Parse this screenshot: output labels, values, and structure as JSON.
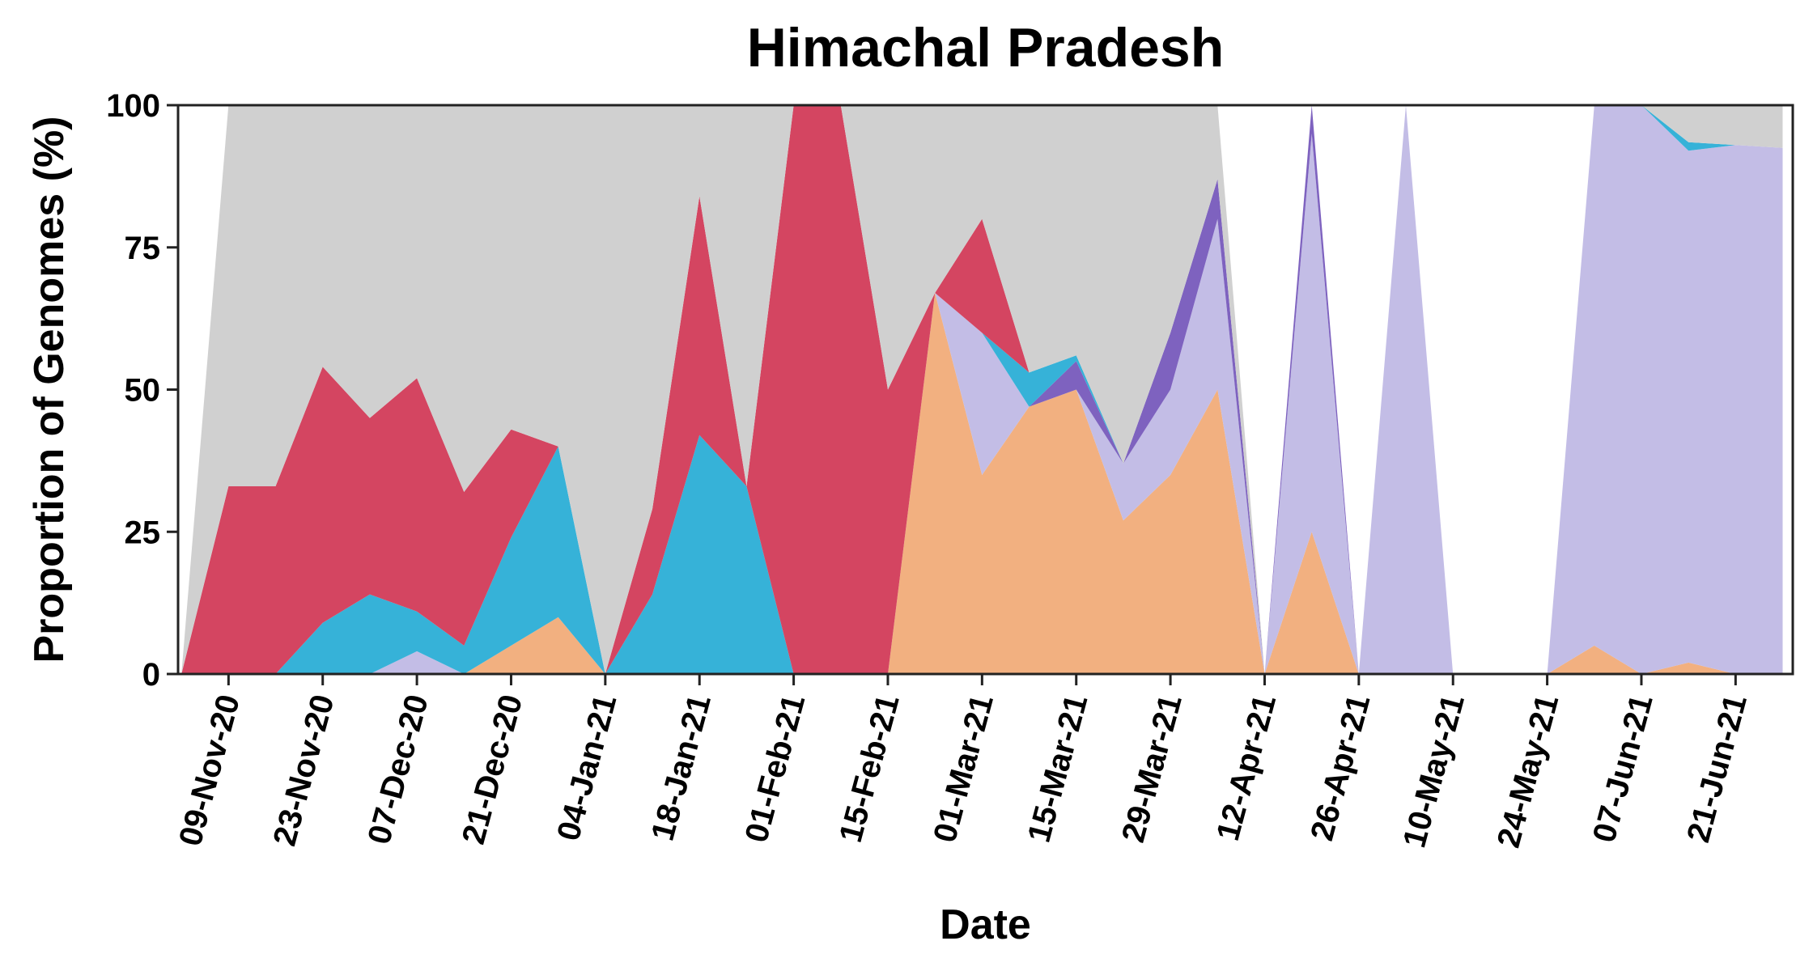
{
  "chart_data": {
    "type": "area",
    "stacked": true,
    "title": "Himachal Pradesh",
    "xlabel": "Date",
    "ylabel": "Proportion of Genomes (%)",
    "ylim": [
      0,
      100
    ],
    "yticks": [
      0,
      25,
      50,
      75,
      100
    ],
    "x_tick_labels": [
      "09-Nov-20",
      "23-Nov-20",
      "07-Dec-20",
      "21-Dec-20",
      "04-Jan-21",
      "18-Jan-21",
      "01-Feb-21",
      "15-Feb-21",
      "01-Mar-21",
      "15-Mar-21",
      "29-Mar-21",
      "12-Apr-21",
      "26-Apr-21",
      "10-May-21",
      "24-May-21",
      "07-Jun-21",
      "21-Jun-21"
    ],
    "x": [
      "2020-11-02",
      "2020-11-09",
      "2020-11-16",
      "2020-11-23",
      "2020-11-30",
      "2020-12-07",
      "2020-12-14",
      "2020-12-21",
      "2020-12-28",
      "2021-01-04",
      "2021-01-11",
      "2021-01-18",
      "2021-01-25",
      "2021-02-01",
      "2021-02-08",
      "2021-02-15",
      "2021-02-22",
      "2021-03-01",
      "2021-03-08",
      "2021-03-15",
      "2021-03-22",
      "2021-03-29",
      "2021-04-05",
      "2021-04-12",
      "2021-04-19",
      "2021-04-26",
      "2021-05-03",
      "2021-05-10",
      "2021-05-17",
      "2021-05-24",
      "2021-05-31",
      "2021-06-07",
      "2021-06-14",
      "2021-06-21",
      "2021-06-28"
    ],
    "series": [
      {
        "color": "#f2b080",
        "values": [
          0,
          0,
          0,
          0,
          0,
          0,
          0,
          5,
          10,
          0,
          0,
          0,
          0,
          0,
          0,
          0,
          67,
          35,
          47,
          50,
          27,
          35,
          50,
          0,
          25,
          0,
          0,
          0,
          0,
          0,
          5,
          0,
          2,
          0,
          0
        ]
      },
      {
        "color": "#c3bde6",
        "values": [
          0,
          0,
          0,
          0,
          0,
          4,
          0,
          0,
          0,
          0,
          0,
          0,
          0,
          0,
          0,
          0,
          0,
          25,
          0,
          0,
          10,
          15,
          30,
          0,
          70,
          0,
          100,
          0,
          0,
          0,
          95,
          100,
          90,
          93,
          92.5
        ]
      },
      {
        "color": "#7e62bf",
        "values": [
          0,
          0,
          0,
          0,
          0,
          0,
          0,
          0,
          0,
          0,
          0,
          0,
          0,
          0,
          0,
          0,
          0,
          0,
          0,
          5,
          0,
          10,
          7,
          0,
          5,
          0,
          0,
          0,
          0,
          0,
          0,
          0,
          0,
          0,
          0
        ]
      },
      {
        "color": "#36b2d8",
        "values": [
          0,
          0,
          0,
          9,
          14,
          7,
          5,
          19,
          30,
          0,
          14,
          42,
          33,
          0,
          0,
          0,
          0,
          0,
          6,
          1,
          0,
          0,
          0,
          0,
          0,
          0,
          0,
          0,
          0,
          0,
          0,
          0,
          1.5,
          0,
          0
        ]
      },
      {
        "color": "#d44561",
        "values": [
          0,
          33,
          33,
          45,
          31,
          41,
          27,
          19,
          0,
          0,
          15,
          42,
          0,
          100,
          100,
          50,
          0,
          20,
          0,
          0,
          0,
          0,
          0,
          0,
          0,
          0,
          0,
          0,
          0,
          0,
          0,
          0,
          0,
          0,
          0
        ]
      },
      {
        "color": "#d0d0d0",
        "values": [
          0,
          67,
          67,
          46,
          55,
          48,
          68,
          57,
          60,
          100,
          71,
          16,
          67,
          0,
          0,
          50,
          33,
          20,
          47,
          44,
          63,
          40,
          13,
          0,
          0,
          0,
          0,
          0,
          0,
          0,
          0,
          0,
          6.5,
          7,
          7.5
        ]
      }
    ]
  }
}
